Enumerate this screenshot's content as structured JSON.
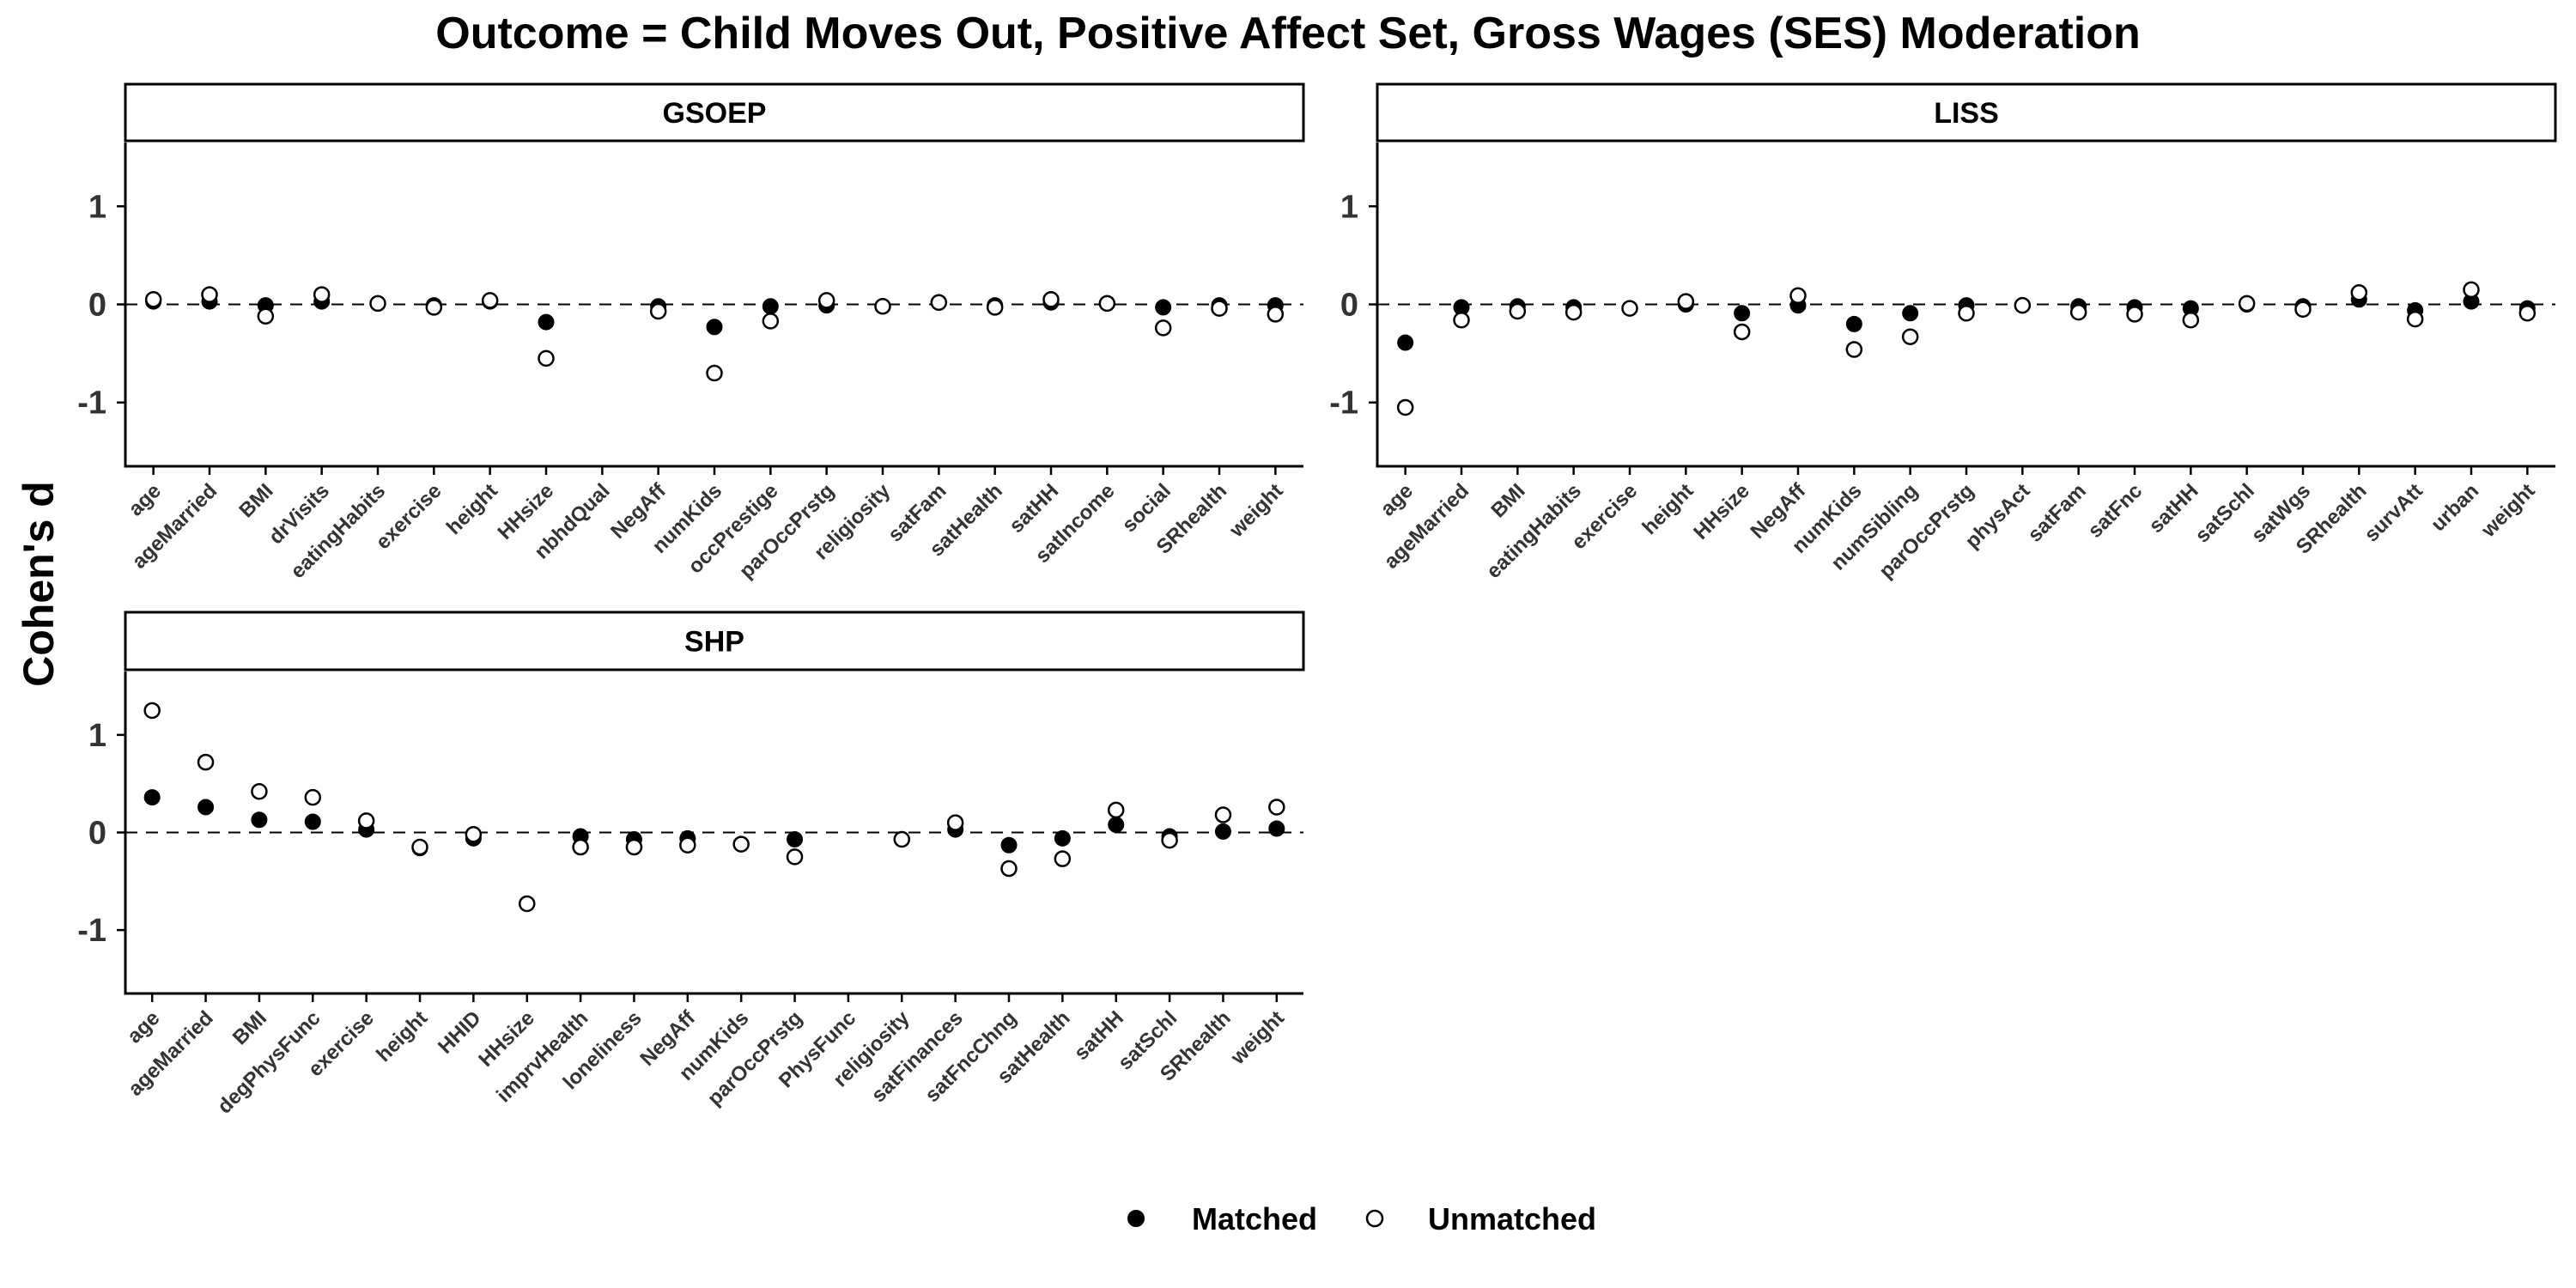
{
  "title": "Outcome = Child Moves Out, Positive Affect Set, Gross Wages (SES) Moderation",
  "ylabel": "Cohen's d",
  "legend": {
    "items": [
      {
        "label": "Matched",
        "marker": "filled-circle"
      },
      {
        "label": "Unmatched",
        "marker": "open-circle"
      }
    ],
    "placement": "bottom"
  },
  "colors": {
    "point": "#000000",
    "background": "#ffffff",
    "strip": "#ffffff",
    "reference_line": "#000000"
  },
  "chart_data": [
    {
      "type": "scatter",
      "panel": "GSOEP",
      "ylim": [
        -1.65,
        1.65
      ],
      "yticks": [
        -1,
        0,
        1
      ],
      "reference_line": 0,
      "grid": false,
      "categories": [
        "age",
        "ageMarried",
        "BMI",
        "drVisits",
        "eatingHabits",
        "exercise",
        "height",
        "HHsize",
        "nbhdQual",
        "NegAff",
        "numKids",
        "occPrestige",
        "parOccPrstg",
        "religiosity",
        "satFam",
        "satHealth",
        "satHH",
        "satIncome",
        "social",
        "SRhealth",
        "weight"
      ],
      "series": [
        {
          "name": "Matched",
          "values": [
            0.03,
            0.03,
            -0.01,
            0.03,
            0.01,
            -0.01,
            0.03,
            -0.18,
            null,
            -0.02,
            -0.23,
            -0.02,
            -0.01,
            -0.02,
            0.02,
            -0.01,
            0.02,
            0.01,
            -0.03,
            -0.01,
            -0.01
          ]
        },
        {
          "name": "Unmatched",
          "values": [
            0.05,
            0.1,
            -0.12,
            0.1,
            0.01,
            -0.03,
            0.04,
            -0.55,
            null,
            -0.07,
            -0.7,
            -0.17,
            0.04,
            -0.02,
            0.02,
            -0.03,
            0.05,
            0.01,
            -0.24,
            -0.04,
            -0.1
          ]
        }
      ]
    },
    {
      "type": "scatter",
      "panel": "LISS",
      "ylim": [
        -1.65,
        1.65
      ],
      "yticks": [
        -1,
        0,
        1
      ],
      "reference_line": 0,
      "grid": false,
      "categories": [
        "age",
        "ageMarried",
        "BMI",
        "eatingHabits",
        "exercise",
        "height",
        "HHsize",
        "NegAff",
        "numKids",
        "numSibling",
        "parOccPrstg",
        "physAct",
        "satFam",
        "satFnc",
        "satHH",
        "satSchl",
        "satWgs",
        "SRhealth",
        "survAtt",
        "urban",
        "weight"
      ],
      "series": [
        {
          "name": "Matched",
          "values": [
            -0.39,
            -0.03,
            -0.02,
            -0.03,
            -0.04,
            0.0,
            -0.09,
            -0.01,
            -0.2,
            -0.09,
            -0.01,
            -0.01,
            -0.02,
            -0.03,
            -0.04,
            0.0,
            -0.02,
            0.05,
            -0.06,
            0.03,
            -0.04
          ]
        },
        {
          "name": "Unmatched",
          "values": [
            -1.05,
            -0.16,
            -0.07,
            -0.08,
            -0.04,
            0.03,
            -0.28,
            0.09,
            -0.46,
            -0.33,
            -0.09,
            -0.01,
            -0.08,
            -0.1,
            -0.16,
            0.01,
            -0.05,
            0.12,
            -0.15,
            0.15,
            -0.09
          ]
        }
      ]
    },
    {
      "type": "scatter",
      "panel": "SHP",
      "ylim": [
        -1.65,
        1.65
      ],
      "yticks": [
        -1,
        0,
        1
      ],
      "reference_line": 0,
      "grid": false,
      "categories": [
        "age",
        "ageMarried",
        "BMI",
        "degPhysFunc",
        "exercise",
        "height",
        "HHID",
        "HHsize",
        "imprvHealth",
        "loneliness",
        "NegAff",
        "numKids",
        "parOccPrstg",
        "PhysFunc",
        "religiosity",
        "satFinances",
        "satFncChng",
        "satHealth",
        "satHH",
        "satSchl",
        "SRhealth",
        "weight"
      ],
      "series": [
        {
          "name": "Matched",
          "values": [
            0.36,
            0.26,
            0.13,
            0.11,
            0.03,
            -0.16,
            -0.06,
            -0.73,
            -0.04,
            -0.07,
            -0.06,
            -0.12,
            -0.07,
            null,
            -0.07,
            0.03,
            -0.13,
            -0.06,
            0.08,
            -0.04,
            0.01,
            0.04
          ]
        },
        {
          "name": "Unmatched",
          "values": [
            1.25,
            0.72,
            0.42,
            0.36,
            0.12,
            -0.15,
            -0.02,
            -0.73,
            -0.15,
            -0.15,
            -0.13,
            -0.12,
            -0.25,
            null,
            -0.07,
            0.1,
            -0.37,
            -0.27,
            0.23,
            -0.08,
            0.18,
            0.26
          ]
        }
      ]
    }
  ]
}
